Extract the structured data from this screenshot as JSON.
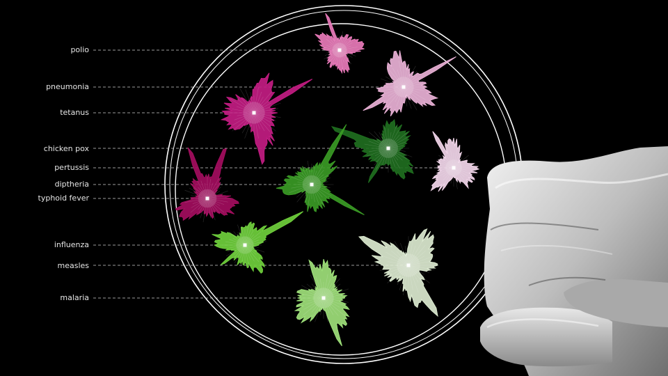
{
  "diseases": [
    {
      "id": "polio",
      "label": "polio",
      "color": "#e879b9"
    },
    {
      "id": "pneumonia",
      "label": "pneumonia",
      "color": "#e9b1d6"
    },
    {
      "id": "tetanus",
      "label": "tetanus",
      "color": "#c21c82"
    },
    {
      "id": "chicken-pox",
      "label": "chicken pox",
      "color": "#1f6e1f"
    },
    {
      "id": "pertussis",
      "label": "pertussis",
      "color": "#f2d6ea"
    },
    {
      "id": "diptheria",
      "label": "diptheria",
      "color": "#3a9a25"
    },
    {
      "id": "typhoid-fever",
      "label": "typhoid fever",
      "color": "#a30d5e"
    },
    {
      "id": "influenza",
      "label": "influenza",
      "color": "#6fcf3c"
    },
    {
      "id": "measles",
      "label": "measles",
      "color": "#dbe9cf"
    },
    {
      "id": "malaria",
      "label": "malaria",
      "color": "#9ee07a"
    }
  ],
  "colors": {
    "background": "#000000",
    "dish": "#ffffff",
    "leader": "#cfcfcf",
    "glove": "#cfcfcf"
  }
}
